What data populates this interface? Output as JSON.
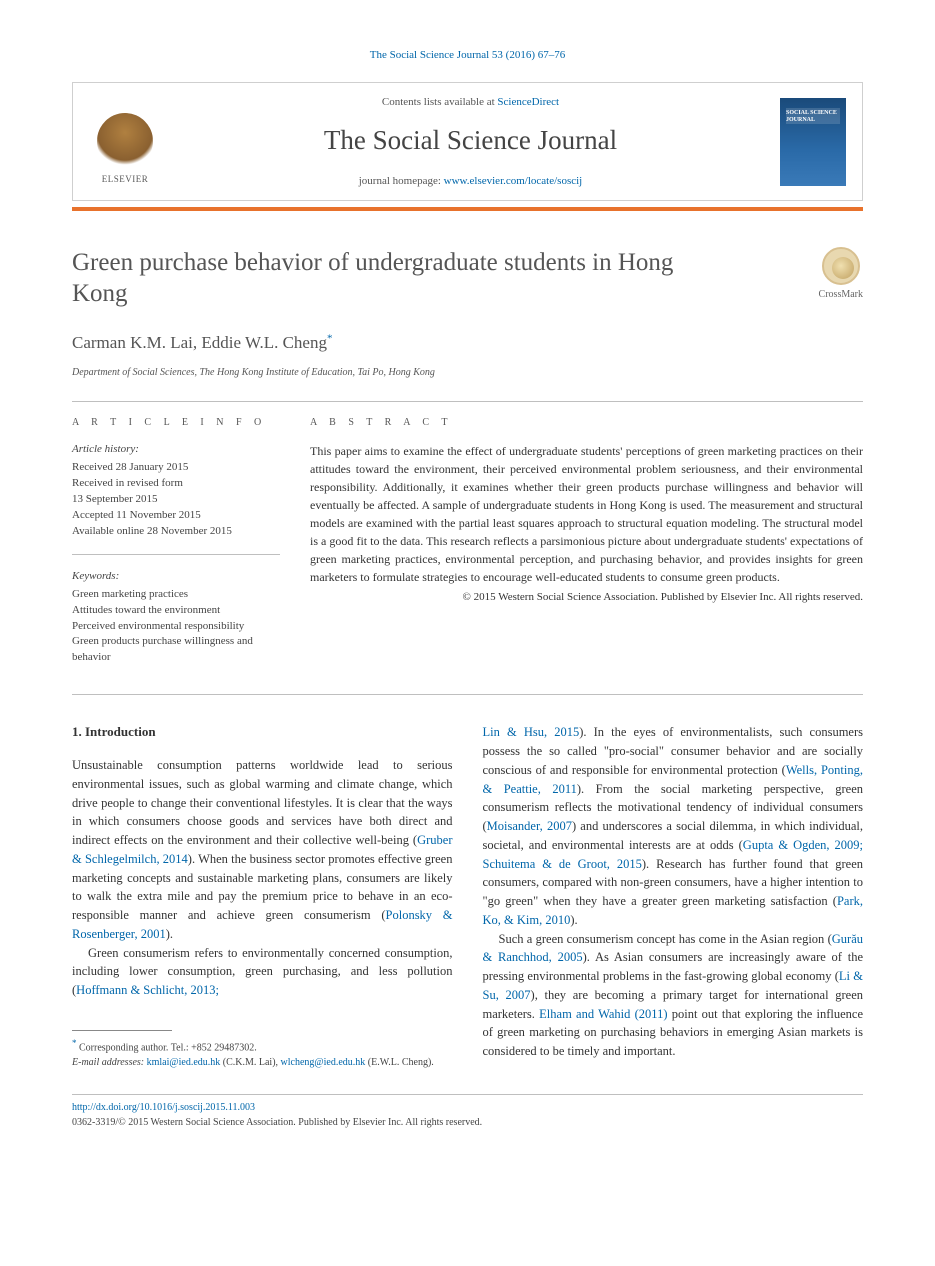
{
  "top_citation": "The Social Science Journal 53 (2016) 67–76",
  "header": {
    "contents_prefix": "Contents lists available at ",
    "contents_link": "ScienceDirect",
    "journal_title": "The Social Science Journal",
    "homepage_prefix": "journal homepage: ",
    "homepage_link": "www.elsevier.com/locate/soscij",
    "elsevier_label": "ELSEVIER",
    "cover_label": "SOCIAL SCIENCE JOURNAL"
  },
  "crossmark_label": "CrossMark",
  "article": {
    "title": "Green purchase behavior of undergraduate students in Hong Kong",
    "authors": "Carman K.M. Lai, Eddie W.L. Cheng",
    "author_marker": "*",
    "affiliation": "Department of Social Sciences, The Hong Kong Institute of Education, Tai Po, Hong Kong"
  },
  "info": {
    "heading": "a r t i c l e   i n f o",
    "history_label": "Article history:",
    "history_lines": [
      "Received 28 January 2015",
      "Received in revised form",
      "13 September 2015",
      "Accepted 11 November 2015",
      "Available online 28 November 2015"
    ],
    "keywords_label": "Keywords:",
    "keywords": [
      "Green marketing practices",
      "Attitudes toward the environment",
      "Perceived environmental responsibility",
      "Green products purchase willingness and behavior"
    ]
  },
  "abstract": {
    "heading": "a b s t r a c t",
    "text": "This paper aims to examine the effect of undergraduate students' perceptions of green marketing practices on their attitudes toward the environment, their perceived environmental problem seriousness, and their environmental responsibility. Additionally, it examines whether their green products purchase willingness and behavior will eventually be affected. A sample of undergraduate students in Hong Kong is used. The measurement and structural models are examined with the partial least squares approach to structural equation modeling. The structural model is a good fit to the data. This research reflects a parsimonious picture about undergraduate students' expectations of green marketing practices, environmental perception, and purchasing behavior, and provides insights for green marketers to formulate strategies to encourage well-educated students to consume green products.",
    "copyright": "© 2015 Western Social Science Association. Published by Elsevier Inc. All rights reserved."
  },
  "body": {
    "section_number": "1.",
    "section_title": "Introduction",
    "left_paras": [
      "Unsustainable consumption patterns worldwide lead to serious environmental issues, such as global warming and climate change, which drive people to change their conventional lifestyles. It is clear that the ways in which consumers choose goods and services have both direct and indirect effects on the environment and their collective well-being (<span class=\"cite\">Gruber & Schlegelmilch, 2014</span>). When the business sector promotes effective green marketing concepts and sustainable marketing plans, consumers are likely to walk the extra mile and pay the premium price to behave in an eco-responsible manner and achieve green consumerism (<span class=\"cite\">Polonsky & Rosenberger, 2001</span>).",
      "Green consumerism refers to environmentally concerned consumption, including lower consumption, green purchasing, and less pollution (<span class=\"cite\">Hoffmann & Schlicht, 2013;</span>"
    ],
    "right_paras": [
      "<span class=\"cite\">Lin & Hsu, 2015</span>). In the eyes of environmentalists, such consumers possess the so called \"pro-social\" consumer behavior and are socially conscious of and responsible for environmental protection (<span class=\"cite\">Wells, Ponting, & Peattie, 2011</span>). From the social marketing perspective, green consumerism reflects the motivational tendency of individual consumers (<span class=\"cite\">Moisander, 2007</span>) and underscores a social dilemma, in which individual, societal, and environmental interests are at odds (<span class=\"cite\">Gupta & Ogden, 2009; Schuitema & de Groot, 2015</span>). Research has further found that green consumers, compared with non-green consumers, have a higher intention to \"go green\" when they have a greater green marketing satisfaction (<span class=\"cite\">Park, Ko, & Kim, 2010</span>).",
      "Such a green consumerism concept has come in the Asian region (<span class=\"cite\">Gurău & Ranchhod, 2005</span>). As Asian consumers are increasingly aware of the pressing environmental problems in the fast-growing global economy (<span class=\"cite\">Li & Su, 2007</span>), they are becoming a primary target for international green marketers. <span class=\"cite\">Elham and Wahid (2011)</span> point out that exploring the influence of green marketing on purchasing behaviors in emerging Asian markets is considered to be timely and important."
    ]
  },
  "footnotes": {
    "corresponding": "Corresponding author. Tel.: +852 29487302.",
    "email_label": "E-mail addresses:",
    "email1": "kmlai@ied.edu.hk",
    "email1_name": "(C.K.M. Lai),",
    "email2": "wlcheng@ied.edu.hk",
    "email2_name": "(E.W.L. Cheng)."
  },
  "bottom": {
    "doi": "http://dx.doi.org/10.1016/j.soscij.2015.11.003",
    "issn": "0362-3319/© 2015 Western Social Science Association. Published by Elsevier Inc. All rights reserved."
  },
  "colors": {
    "link": "#0066aa",
    "accent": "#e8722c",
    "text": "#333333",
    "muted": "#555555",
    "rule": "#bfbfbf"
  }
}
